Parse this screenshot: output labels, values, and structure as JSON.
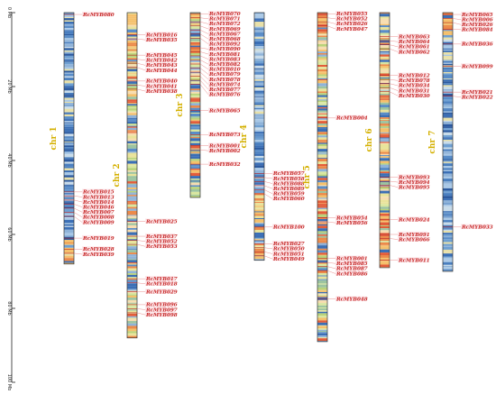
{
  "colors": {
    "gene_label": "#c62828",
    "chromosome_label": "#d4b000",
    "axis": "#222222",
    "connector": "#e57373",
    "label_bg": "#fde7ea"
  },
  "axis": {
    "unit": "Mb",
    "max": 100,
    "ticks": [
      "0 Mb",
      "20 Mb",
      "40 Mb",
      "60 Mb",
      "80 Mb",
      "100 Mb"
    ]
  },
  "chromosomes": [
    {
      "name": "chr 1",
      "length_mb": 68,
      "palette": "blue",
      "genes": [
        {
          "name": "RcMYB080",
          "pos": 0.5
        },
        {
          "name": "RcMYB015",
          "pos": 48.5
        },
        {
          "name": "RcMYB013",
          "pos": 49.6
        },
        {
          "name": "RcMYB014",
          "pos": 50.7
        },
        {
          "name": "RcMYB046",
          "pos": 51.8
        },
        {
          "name": "RcMYB007",
          "pos": 52.9
        },
        {
          "name": "RcMYB008",
          "pos": 54.0
        },
        {
          "name": "RcMYB009",
          "pos": 55.1
        },
        {
          "name": "RcMYB019",
          "pos": 61.0
        },
        {
          "name": "RcMYB028",
          "pos": 64.0
        },
        {
          "name": "RcMYB039",
          "pos": 65.1
        }
      ]
    },
    {
      "name": "chr 2",
      "length_mb": 88,
      "palette": "mixed",
      "genes": [
        {
          "name": "RcMYB016",
          "pos": 6.0
        },
        {
          "name": "RcMYB035",
          "pos": 7.1
        },
        {
          "name": "RcMYB045",
          "pos": 11.5
        },
        {
          "name": "RcMYB042",
          "pos": 12.6
        },
        {
          "name": "RcMYB043",
          "pos": 13.7
        },
        {
          "name": "RcMYB044",
          "pos": 14.8
        },
        {
          "name": "RcMYB040",
          "pos": 18.5
        },
        {
          "name": "RcMYB041",
          "pos": 19.6
        },
        {
          "name": "RcMYB038",
          "pos": 20.7
        },
        {
          "name": "RcMYB025",
          "pos": 56.5
        },
        {
          "name": "RcMYB037",
          "pos": 60.5
        },
        {
          "name": "RcMYB052",
          "pos": 61.6
        },
        {
          "name": "RcMYB053",
          "pos": 62.7
        },
        {
          "name": "RcMYB017",
          "pos": 72.0
        },
        {
          "name": "RcMYB018",
          "pos": 73.1
        },
        {
          "name": "RcMYB029",
          "pos": 75.5
        },
        {
          "name": "RcMYB096",
          "pos": 79.0
        },
        {
          "name": "RcMYB097",
          "pos": 80.1
        },
        {
          "name": "RcMYB098",
          "pos": 81.2
        }
      ]
    },
    {
      "name": "chr 3",
      "length_mb": 50,
      "palette": "mixed",
      "genes": [
        {
          "name": "RcMYB070",
          "pos": 0.3
        },
        {
          "name": "RcMYB071",
          "pos": 1.4
        },
        {
          "name": "RcMYB072",
          "pos": 2.5
        },
        {
          "name": "RcMYB069",
          "pos": 3.6
        },
        {
          "name": "RcMYB067",
          "pos": 4.7
        },
        {
          "name": "RcMYB068",
          "pos": 5.8
        },
        {
          "name": "RcMYB092",
          "pos": 6.9
        },
        {
          "name": "RcMYB090",
          "pos": 9.5
        },
        {
          "name": "RcMYB081",
          "pos": 10.6
        },
        {
          "name": "RcMYB083",
          "pos": 11.7
        },
        {
          "name": "RcMYB082",
          "pos": 12.8
        },
        {
          "name": "RcMYB010",
          "pos": 13.9
        },
        {
          "name": "RcMYB079",
          "pos": 15.0
        },
        {
          "name": "RcMYB078",
          "pos": 16.1
        },
        {
          "name": "RcMYB074",
          "pos": 17.2
        },
        {
          "name": "RcMYB077",
          "pos": 18.3
        },
        {
          "name": "RcMYB076",
          "pos": 19.4
        },
        {
          "name": "RcMYB065",
          "pos": 26.5
        },
        {
          "name": "RcMYB073",
          "pos": 33.0
        },
        {
          "name": "RcMYB001",
          "pos": 36.0
        },
        {
          "name": "RcMYB002",
          "pos": 37.1
        },
        {
          "name": "RcMYB032",
          "pos": 41.0
        }
      ]
    },
    {
      "name": "chr 4",
      "length_mb": 67,
      "palette": "blue",
      "genes": [
        {
          "name": "RcMYB057",
          "pos": 43.5
        },
        {
          "name": "RcMYB058",
          "pos": 44.6
        },
        {
          "name": "RcMYB088",
          "pos": 45.7
        },
        {
          "name": "RcMYB089",
          "pos": 46.8
        },
        {
          "name": "RcMYB059",
          "pos": 47.9
        },
        {
          "name": "RcMYB060",
          "pos": 49.0
        },
        {
          "name": "RcMYB100",
          "pos": 58.0
        },
        {
          "name": "RcMYB027",
          "pos": 62.5
        },
        {
          "name": "RcMYB050",
          "pos": 63.6
        },
        {
          "name": "RcMYB051",
          "pos": 64.7
        },
        {
          "name": "RcMYB049",
          "pos": 65.8
        }
      ]
    },
    {
      "name": "chr 5",
      "length_mb": 89,
      "palette": "mixed",
      "genes": [
        {
          "name": "RcMYB055",
          "pos": 0.3
        },
        {
          "name": "RcMYB052",
          "pos": 1.4
        },
        {
          "name": "RcMYB026",
          "pos": 2.5
        },
        {
          "name": "RcMYB047",
          "pos": 3.6
        },
        {
          "name": "RcMYB004",
          "pos": 28.5
        },
        {
          "name": "RcMYB054",
          "pos": 55.5
        },
        {
          "name": "RcMYB056",
          "pos": 56.6
        },
        {
          "name": "RcMYB001",
          "pos": 66.5
        },
        {
          "name": "RcMYB085",
          "pos": 67.6
        },
        {
          "name": "RcMYB087",
          "pos": 68.7
        },
        {
          "name": "RcMYB086",
          "pos": 69.8
        },
        {
          "name": "RcMYB048",
          "pos": 77.5
        }
      ]
    },
    {
      "name": "chr 6",
      "length_mb": 69,
      "palette": "mixed",
      "genes": [
        {
          "name": "RcMYB063",
          "pos": 6.5
        },
        {
          "name": "RcMYB064",
          "pos": 7.6
        },
        {
          "name": "RcMYB061",
          "pos": 8.7
        },
        {
          "name": "RcMYB062",
          "pos": 9.8
        },
        {
          "name": "RcMYB012",
          "pos": 17.0
        },
        {
          "name": "RcMYB078",
          "pos": 18.1
        },
        {
          "name": "RcMYB034",
          "pos": 19.2
        },
        {
          "name": "RcMYB031",
          "pos": 20.3
        },
        {
          "name": "RcMYB030",
          "pos": 21.4
        },
        {
          "name": "RcMYB093",
          "pos": 44.5
        },
        {
          "name": "RcMYB094",
          "pos": 45.6
        },
        {
          "name": "RcMYB095",
          "pos": 46.7
        },
        {
          "name": "RcMYB024",
          "pos": 56.0
        },
        {
          "name": "RcMYB091",
          "pos": 60.0
        },
        {
          "name": "RcMYB066",
          "pos": 61.1
        },
        {
          "name": "RcMYB011",
          "pos": 67.0
        }
      ]
    },
    {
      "name": "chr 7",
      "length_mb": 70,
      "palette": "blue",
      "genes": [
        {
          "name": "RcMYB065",
          "pos": 0.5
        },
        {
          "name": "RcMYB006",
          "pos": 1.6
        },
        {
          "name": "RcMYB026",
          "pos": 2.7
        },
        {
          "name": "RcMYB084",
          "pos": 4.5
        },
        {
          "name": "RcMYB036",
          "pos": 8.5
        },
        {
          "name": "RcMYB099",
          "pos": 14.5
        },
        {
          "name": "RcMYB021",
          "pos": 21.5
        },
        {
          "name": "RcMYB022",
          "pos": 22.6
        },
        {
          "name": "RcMYB033",
          "pos": 58.0
        }
      ]
    }
  ]
}
